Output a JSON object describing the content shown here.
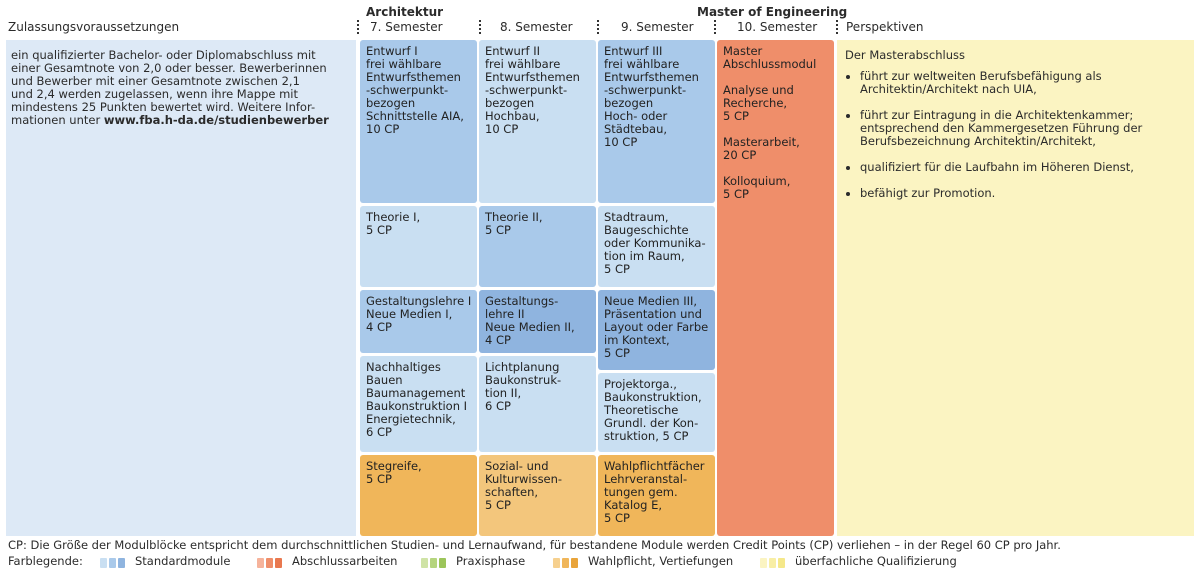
{
  "headers": {
    "zulassung": "Zulassungsvoraussetzungen",
    "architektur": "Architektur",
    "master": "Master of Engineering",
    "sem7": "7. Semester",
    "sem8": "8. Semester",
    "sem9": "9. Semester",
    "sem10": "10. Semester",
    "perspektiven": "Perspektiven"
  },
  "zulassung": {
    "lines": [
      "ein qualifizierter Bachelor- oder Diplomabschluss mit",
      "einer Gesamtnote von 2,0 oder besser. Bewerberinnen",
      "und Bewerber mit einer Gesamtnote zwischen 2,1",
      "und 2,4 werden zugelassen, wenn ihre Mappe mit",
      "mindestens 25 Punkten bewertet wird. Weitere Infor-",
      "mationen unter"
    ],
    "link": "www.fba.h-da.de/studienbewerber"
  },
  "columns": {
    "sem7": [
      {
        "lines": [
          "Entwurf I",
          "frei wählbare",
          "Entwurfsthemen",
          "-schwerpunkt-",
          "bezogen",
          "Schnittstelle AIA,",
          "10 CP"
        ]
      },
      {
        "lines": [
          "Theorie I,",
          "5 CP"
        ]
      },
      {
        "lines": [
          "Gestaltungslehre I",
          "Neue Medien I,",
          "4 CP"
        ]
      },
      {
        "lines": [
          "Nachhaltiges",
          "Bauen",
          "Baumanagement",
          "Baukonstruktion I",
          "Energietechnik,",
          "6 CP"
        ]
      },
      {
        "lines": [
          "Stegreife,",
          "5 CP"
        ]
      }
    ],
    "sem8": [
      {
        "lines": [
          "Entwurf II",
          "frei wählbare",
          "Entwurfsthemen",
          "-schwerpunkt-",
          "bezogen",
          "Hochbau,",
          "10 CP"
        ]
      },
      {
        "lines": [
          "Theorie II,",
          "5 CP"
        ]
      },
      {
        "lines": [
          "Gestaltungs-",
          "lehre II",
          "Neue Medien II,",
          "4 CP"
        ]
      },
      {
        "lines": [
          "Lichtplanung",
          "Baukonstruk-",
          "tion II,",
          "6 CP"
        ]
      },
      {
        "lines": [
          "Sozial- und",
          "Kulturwissen-",
          "schaften,",
          "5 CP"
        ]
      }
    ],
    "sem9": [
      {
        "lines": [
          "Entwurf III",
          "frei wählbare",
          "Entwurfsthemen",
          "-schwerpunkt-",
          "bezogen",
          "Hoch- oder",
          "Städtebau,",
          "10 CP"
        ]
      },
      {
        "lines": [
          "Stadtraum,",
          "Baugeschichte",
          "oder Kommunika-",
          "tion im Raum,",
          "5 CP"
        ]
      },
      {
        "lines": [
          "Neue Medien III,",
          "Präsentation und",
          "Layout oder Farbe",
          "im Kontext,",
          "5 CP"
        ]
      },
      {
        "lines": [
          "Projektorga.,",
          "Baukonstruktion,",
          "Theoretische",
          "Grundl. der Kon-",
          "struktion, 5 CP"
        ]
      },
      {
        "lines": [
          "Wahlpflichtfächer",
          "Lehrveranstal-",
          "tungen gem.",
          "Katalog E,",
          "5 CP"
        ]
      }
    ],
    "sem10": {
      "lines": [
        "Master",
        "Abschlussmodul",
        "",
        "Analyse und",
        "Recherche,",
        "5 CP",
        "",
        "Masterarbeit,",
        "20 CP",
        "",
        "Kolloquium,",
        "5 CP"
      ]
    }
  },
  "perspektiven": {
    "title": "Der Masterabschluss",
    "items": [
      "führt zur weltweiten Berufsbefähigung als Architektin/Architekt nach UIA,",
      "führt zur Eintragung in die Architektenkammer; entsprechend den Kammergesetzen Führung der Berufsbezeichnung Architektin/Architekt,",
      "qualifiziert für die Laufbahn im Höheren Dienst,",
      "befähigt zur Promotion."
    ]
  },
  "footer": {
    "cp_note": "CP: Die Größe der Modulblöcke entspricht dem durchschnittlichen Studien- und Lernaufwand, für bestandene Module werden Credit Points (CP) verliehen – in der Regel 60 CP pro Jahr.",
    "legend_title": "Farblegende:",
    "legend": [
      {
        "label": "Standardmodule",
        "colors": [
          "#c9dff2",
          "#a9c9ea",
          "#8fb4df"
        ]
      },
      {
        "label": "Abschlussarbeiten",
        "colors": [
          "#f6b39b",
          "#ef8e6a",
          "#e9784f"
        ]
      },
      {
        "label": "Praxisphase",
        "colors": [
          "#cfe3a6",
          "#b5d57e",
          "#9cc55a"
        ]
      },
      {
        "label": "Wahlpflicht, Vertiefungen",
        "colors": [
          "#f6d08e",
          "#f0b65a",
          "#e9a43a"
        ]
      },
      {
        "label": "überfachliche Qualifizierung",
        "colors": [
          "#fbf4c2",
          "#f8eea5",
          "#f5e88a"
        ]
      }
    ]
  }
}
